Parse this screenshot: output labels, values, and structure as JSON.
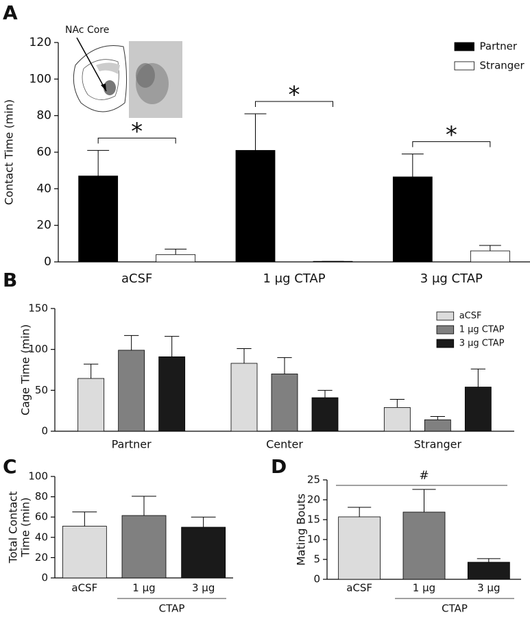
{
  "chart_data": [
    {
      "type": "bar",
      "panel": "A",
      "ylabel": "Contact Time (min)",
      "inset_label": "NAc Core",
      "categories": [
        "aCSF",
        "1 μg CTAP",
        "3 μg CTAP"
      ],
      "series": [
        {
          "name": "Partner",
          "color": "#000000",
          "values": [
            47,
            61,
            46.5
          ],
          "errors": [
            14,
            20,
            12.5
          ]
        },
        {
          "name": "Stranger",
          "color": "#ffffff",
          "values": [
            4,
            0.3,
            6
          ],
          "errors": [
            3,
            0,
            3
          ]
        }
      ],
      "significance": [
        "*",
        "*",
        "*"
      ],
      "ylim": [
        0,
        120
      ],
      "yticks": [
        0,
        20,
        40,
        60,
        80,
        100,
        120
      ],
      "grid": false,
      "legend": "top-right"
    },
    {
      "type": "bar",
      "panel": "B",
      "ylabel": "Cage Time (min)",
      "categories": [
        "Partner",
        "Center",
        "Stranger"
      ],
      "series": [
        {
          "name": "aCSF",
          "color": "#dcdcdc",
          "values": [
            64.5,
            83,
            29
          ],
          "errors": [
            17.5,
            18,
            10
          ]
        },
        {
          "name": "1 μg CTAP",
          "color": "#808080",
          "values": [
            99,
            70,
            14
          ],
          "errors": [
            18,
            20,
            4
          ]
        },
        {
          "name": "3 μg CTAP",
          "color": "#1a1a1a",
          "values": [
            91,
            41,
            54
          ],
          "errors": [
            25,
            9,
            22
          ]
        }
      ],
      "ylim": [
        0,
        150
      ],
      "yticks": [
        0,
        50,
        100,
        150
      ],
      "grid": false,
      "legend": "top-right"
    },
    {
      "type": "bar",
      "panel": "C",
      "ylabel": [
        "Total Contact",
        "Time (min)"
      ],
      "categories": [
        "aCSF",
        "1 μg",
        "3 μg"
      ],
      "group_label": "CTAP",
      "values": [
        51,
        61.5,
        50
      ],
      "errors": [
        14,
        19,
        10
      ],
      "colors": [
        "#dcdcdc",
        "#808080",
        "#1a1a1a"
      ],
      "ylim": [
        0,
        100
      ],
      "yticks": [
        0,
        20,
        40,
        60,
        80,
        100
      ],
      "grid": false
    },
    {
      "type": "bar",
      "panel": "D",
      "ylabel": "Mating Bouts",
      "categories": [
        "aCSF",
        "1 μg",
        "3 μg"
      ],
      "group_label": "CTAP",
      "annotation": "#",
      "values": [
        15.7,
        16.9,
        4.3
      ],
      "errors": [
        2.4,
        5.7,
        0.9
      ],
      "colors": [
        "#dcdcdc",
        "#808080",
        "#1a1a1a"
      ],
      "ylim": [
        0,
        25
      ],
      "yticks": [
        0,
        5,
        10,
        15,
        20,
        25
      ],
      "grid": false
    }
  ]
}
